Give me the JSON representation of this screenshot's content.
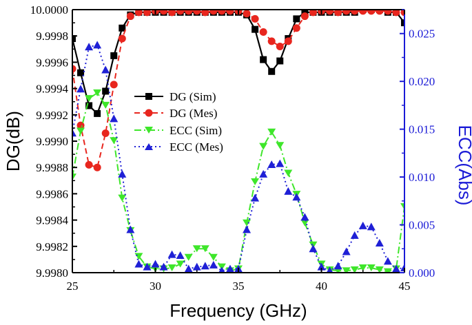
{
  "chart_data": {
    "type": "line",
    "xlabel": "Frequency (GHz)",
    "ylabel_left": "DG(dB)",
    "ylabel_right": "ECC(Abs)",
    "xlim": [
      25,
      45
    ],
    "ylim_left": [
      9.998,
      10.0
    ],
    "ylim_right": [
      0,
      0.0275
    ],
    "x_ticks": [
      25,
      30,
      35,
      40,
      45
    ],
    "y_ticks_left": [
      "9.9980",
      "9.9982",
      "9.9984",
      "9.9986",
      "9.9988",
      "9.9990",
      "9.9992",
      "9.9994",
      "9.9996",
      "9.9998",
      "10.0000"
    ],
    "y_ticks_right": [
      "0.000",
      "0.005",
      "0.010",
      "0.015",
      "0.020",
      "0.025"
    ],
    "colors": {
      "axis": "#000000",
      "right_axis": "#1a1ad6",
      "dg_sim": "#000000",
      "dg_mes": "#e8261e",
      "ecc_sim": "#3ee62a",
      "ecc_mes": "#1f20d6"
    },
    "legend": {
      "position": "center-left",
      "entries": [
        "DG (Sim)",
        "DG (Mes)",
        "ECC (Sim)",
        "ECC (Mes)"
      ]
    },
    "series": [
      {
        "name": "DG (Sim)",
        "axis": "left",
        "marker": "square",
        "line": "solid",
        "color_key": "dg_sim",
        "x": [
          25,
          25.5,
          26,
          26.5,
          27,
          27.5,
          28,
          28.5,
          29,
          29.5,
          30,
          30.5,
          31,
          31.5,
          32,
          32.5,
          33,
          33.5,
          34,
          34.5,
          35,
          35.5,
          36,
          36.5,
          37,
          37.5,
          38,
          38.5,
          39,
          39.5,
          40,
          40.5,
          41,
          41.5,
          42,
          42.5,
          43,
          43.5,
          44,
          44.5,
          45
        ],
        "y": [
          9.99978,
          9.99952,
          9.99927,
          9.99921,
          9.99938,
          9.99965,
          9.99986,
          9.99996,
          9.99998,
          9.99998,
          9.99998,
          9.99998,
          9.99998,
          9.99998,
          9.99998,
          9.99998,
          9.99998,
          9.99998,
          9.99998,
          9.99998,
          9.99998,
          9.99996,
          9.99985,
          9.99962,
          9.99953,
          9.99961,
          9.99978,
          9.99993,
          9.99998,
          9.99998,
          9.99998,
          9.99998,
          9.99998,
          9.99998,
          9.99998,
          10.0,
          10.0,
          10.0,
          9.99998,
          9.99998,
          9.9999
        ]
      },
      {
        "name": "DG (Mes)",
        "axis": "left",
        "marker": "circle",
        "line": "dash",
        "color_key": "dg_mes",
        "x": [
          25,
          25.5,
          26,
          26.5,
          27,
          27.5,
          28,
          28.5,
          29,
          29.5,
          30,
          30.5,
          31,
          31.5,
          32,
          32.5,
          33,
          33.5,
          34,
          34.5,
          35,
          35.5,
          36,
          36.5,
          37,
          37.5,
          38,
          38.5,
          39,
          39.5,
          40,
          40.5,
          41,
          41.5,
          42,
          42.5,
          43,
          43.5,
          44,
          44.5,
          45
        ],
        "y": [
          9.99955,
          9.99912,
          9.99882,
          9.9988,
          9.99906,
          9.99943,
          9.99978,
          9.99995,
          9.99998,
          9.99998,
          9.99999,
          9.99999,
          9.99998,
          9.99999,
          9.99999,
          9.99999,
          9.99998,
          9.99999,
          9.99999,
          9.99999,
          9.99999,
          9.99997,
          9.99993,
          9.99983,
          9.99976,
          9.99972,
          9.99976,
          9.99986,
          9.99995,
          9.99998,
          9.99999,
          9.99999,
          9.99998,
          9.99999,
          9.99999,
          9.99999,
          9.99999,
          9.99999,
          9.99999,
          9.99998,
          9.99998
        ]
      },
      {
        "name": "ECC (Sim)",
        "axis": "right",
        "marker": "triangle-down",
        "line": "dashdot",
        "color_key": "ecc_sim",
        "x": [
          25,
          25.5,
          26,
          26.5,
          27,
          27.5,
          28,
          28.5,
          29,
          29.5,
          30,
          30.5,
          31,
          31.5,
          32,
          32.5,
          33,
          33.5,
          34,
          34.5,
          35,
          35.5,
          36,
          36.5,
          37,
          37.5,
          38,
          38.5,
          39,
          39.5,
          40,
          40.5,
          41,
          41.5,
          42,
          42.5,
          43,
          43.5,
          44,
          44.5,
          45
        ],
        "y": [
          0.01,
          0.0148,
          0.0182,
          0.0188,
          0.0175,
          0.0138,
          0.0078,
          0.0044,
          0.0017,
          0.0006,
          0.0004,
          0.0004,
          0.0005,
          0.0009,
          0.0016,
          0.0025,
          0.0025,
          0.0016,
          0.0006,
          0.0002,
          0.0004,
          0.0052,
          0.0095,
          0.0132,
          0.0147,
          0.0133,
          0.0104,
          0.0082,
          0.0052,
          0.0029,
          0.0009,
          0.0003,
          0.0002,
          0.0002,
          0.0003,
          0.0005,
          0.0005,
          0.0003,
          0.0001,
          0.0004,
          0.0069
        ]
      },
      {
        "name": "ECC (Mes)",
        "axis": "right",
        "marker": "triangle",
        "line": "dot",
        "color_key": "ecc_mes",
        "x": [
          25,
          25.5,
          26,
          26.5,
          27,
          27.5,
          28,
          28.5,
          29,
          29.5,
          30,
          30.5,
          31,
          31.5,
          32,
          32.5,
          33,
          33.5,
          34,
          34.5,
          35,
          35.5,
          36,
          36.5,
          37,
          37.5,
          38,
          38.5,
          39,
          39.5,
          40,
          40.5,
          41,
          41.5,
          42,
          42.5,
          43,
          43.5,
          44,
          44.5,
          45
        ],
        "y": [
          0.0146,
          0.0192,
          0.0236,
          0.0238,
          0.0212,
          0.0161,
          0.0103,
          0.0045,
          0.0009,
          0.0006,
          0.0009,
          0.0006,
          0.0019,
          0.0018,
          0.0004,
          0.0006,
          0.0007,
          0.0008,
          0.0002,
          0.0004,
          0.0004,
          0.0045,
          0.0078,
          0.0103,
          0.0113,
          0.0114,
          0.0085,
          0.0079,
          0.0058,
          0.0025,
          0.0006,
          0.0002,
          0.0007,
          0.0022,
          0.0039,
          0.0049,
          0.0048,
          0.0031,
          0.0012,
          0.0004,
          0.0005
        ]
      }
    ]
  }
}
